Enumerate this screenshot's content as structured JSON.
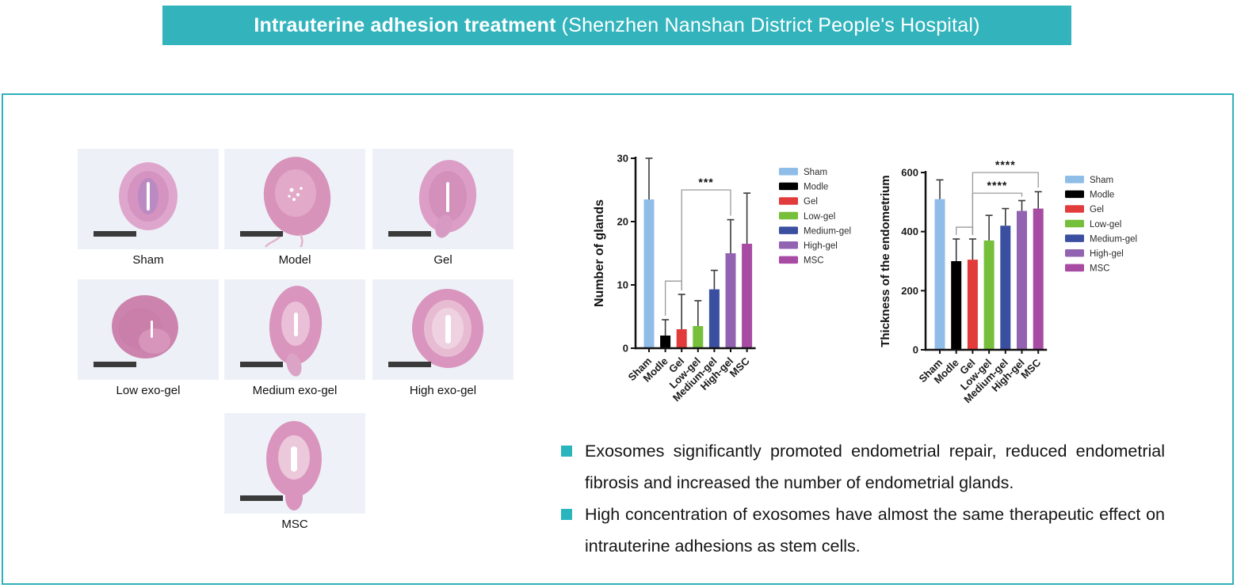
{
  "header": {
    "title_bold": "Intrauterine adhesion treatment",
    "title_rest": "(Shenzhen Nanshan District People's Hospital)",
    "bg_color": "#33b4bd",
    "text_color": "#ffffff"
  },
  "accent_color": "#2fb0ba",
  "histology": {
    "items": [
      {
        "label": "Sham"
      },
      {
        "label": "Model"
      },
      {
        "label": "Gel"
      },
      {
        "label": "Low exo-gel"
      },
      {
        "label": "Medium exo-gel"
      },
      {
        "label": "High exo-gel"
      },
      {
        "label": "MSC"
      }
    ]
  },
  "chart_data": [
    {
      "type": "bar",
      "title": "",
      "xlabel": "",
      "ylabel": "Number of glands",
      "categories": [
        "Sham",
        "Modle",
        "Gel",
        "Low-gel",
        "Medium-gel",
        "High-gel",
        "MSC"
      ],
      "values": [
        23.5,
        2,
        3,
        3.5,
        9.3,
        15,
        16.5
      ],
      "errors_upper": [
        30,
        4.5,
        8.5,
        7.5,
        12.3,
        20.3,
        24.5
      ],
      "bar_colors": [
        "#8fbde8",
        "#000000",
        "#e23b3b",
        "#76bf3a",
        "#3b4fa0",
        "#9263b1",
        "#a84ba2"
      ],
      "ylim": [
        0,
        30
      ],
      "yticks": [
        0,
        10,
        20,
        30
      ],
      "grid": false,
      "legend": [
        "Sham",
        "Modle",
        "Gel",
        "Low-gel",
        "Medium-gel",
        "High-gel",
        "MSC"
      ],
      "legend_position": "right",
      "significance": [
        {
          "from": "Modle",
          "to": "Gel",
          "y": 10.6,
          "label": ""
        },
        {
          "from": "Gel",
          "to": "High-gel",
          "y": 25,
          "label": "***"
        }
      ]
    },
    {
      "type": "bar",
      "title": "",
      "xlabel": "",
      "ylabel": "Thickness of the endometrium",
      "categories": [
        "Sham",
        "Modle",
        "Gel",
        "Low-gel",
        "Medium-gel",
        "High-gel",
        "MSC"
      ],
      "values": [
        510,
        300,
        305,
        370,
        420,
        470,
        478
      ],
      "errors_upper": [
        575,
        375,
        375,
        455,
        478,
        505,
        535
      ],
      "bar_colors": [
        "#8fbde8",
        "#000000",
        "#e23b3b",
        "#76bf3a",
        "#3b4fa0",
        "#9263b1",
        "#a84ba2"
      ],
      "ylim": [
        0,
        600
      ],
      "yticks": [
        0,
        200,
        400,
        600
      ],
      "grid": false,
      "legend": [
        "Sham",
        "Modle",
        "Gel",
        "Low-gel",
        "Medium-gel",
        "High-gel",
        "MSC"
      ],
      "legend_position": "right",
      "significance": [
        {
          "from": "Modle",
          "to": "Gel",
          "y": 415,
          "label": ""
        },
        {
          "from": "Gel",
          "to": "High-gel",
          "y": 530,
          "label": "****"
        },
        {
          "from": "Gel",
          "to": "MSC",
          "y": 600,
          "label": "****"
        }
      ]
    }
  ],
  "findings": {
    "bullet_color": "#2ab5bd",
    "items": [
      {
        "text": "Exosomes significantly promoted endometrial repair, reduced endometrial fibrosis and increased the number of endometrial glands."
      },
      {
        "text": "High concentration of exosomes have almost the same therapeutic effect on intrauterine adhesions as stem cells."
      }
    ]
  }
}
